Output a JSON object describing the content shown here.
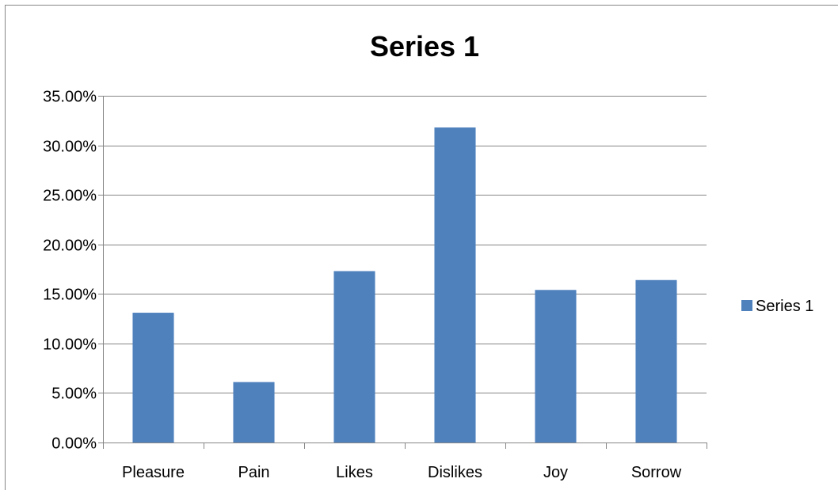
{
  "chart_data": {
    "type": "bar",
    "title": "Series 1",
    "categories": [
      "Pleasure",
      "Pain",
      "Likes",
      "Dislikes",
      "Joy",
      "Sorrow"
    ],
    "series": [
      {
        "name": "Series 1",
        "values": [
          0.131,
          0.061,
          0.173,
          0.318,
          0.154,
          0.164
        ],
        "color": "#4F81BD"
      }
    ],
    "y_ticks": [
      "0.00%",
      "5.00%",
      "10.00%",
      "15.00%",
      "20.00%",
      "25.00%",
      "30.00%",
      "35.00%"
    ],
    "ylim": [
      0,
      0.35
    ],
    "y_step": 0.05,
    "xlabel": "",
    "ylabel": "",
    "grid": true,
    "legend": "right",
    "colors": {
      "gridline": "#868686",
      "axis": "#868686",
      "border": "#868686"
    }
  }
}
